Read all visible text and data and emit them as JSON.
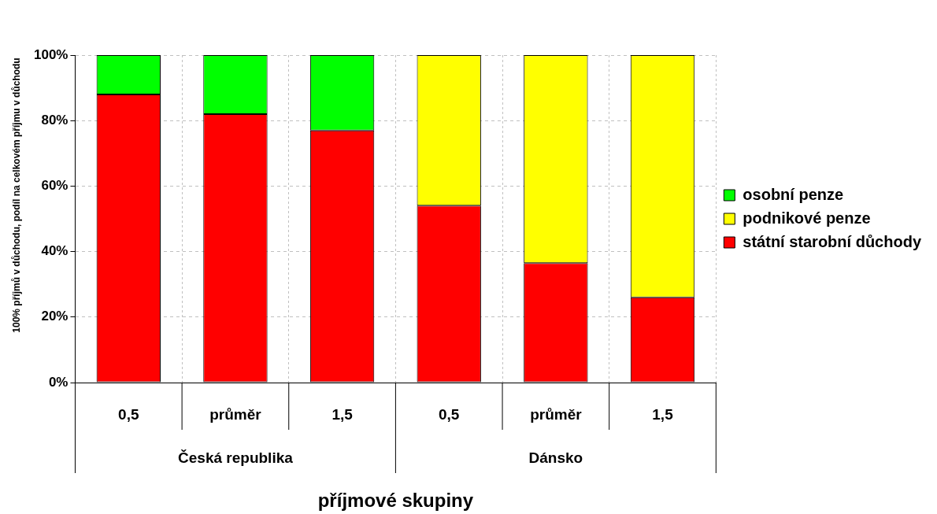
{
  "chart_data": {
    "type": "bar",
    "stacked": true,
    "xlabel": "příjmové skupiny",
    "ylabel": "100% příjmů v důchodu, podíl na celkovém příjmu v důchodu",
    "categories": [
      "0,5",
      "průměr",
      "1,5",
      "0,5",
      "průměr",
      "1,5"
    ],
    "series": [
      {
        "name": "státní starobní důchody",
        "color": "#ff0000",
        "values": [
          88,
          82,
          77,
          54,
          36.5,
          26
        ]
      },
      {
        "name": "podnikové penze",
        "color": "#ffff00",
        "values": [
          null,
          null,
          null,
          46,
          63.5,
          74
        ]
      },
      {
        "name": "osobní penze",
        "color": "#00ff00",
        "values": [
          12,
          18,
          23,
          null,
          null,
          null
        ]
      }
    ],
    "annotations": [
      "Česká republika",
      "Dánsko"
    ],
    "ylim": [
      0,
      100
    ],
    "yticks": [
      {
        "value": 0,
        "label": "0%"
      },
      {
        "value": 20,
        "label": "20%"
      },
      {
        "value": 40,
        "label": "40%"
      },
      {
        "value": 60,
        "label": "60%"
      },
      {
        "value": 80,
        "label": "80%"
      },
      {
        "value": 100,
        "label": "100%"
      }
    ],
    "grid": true,
    "legend": "right"
  }
}
